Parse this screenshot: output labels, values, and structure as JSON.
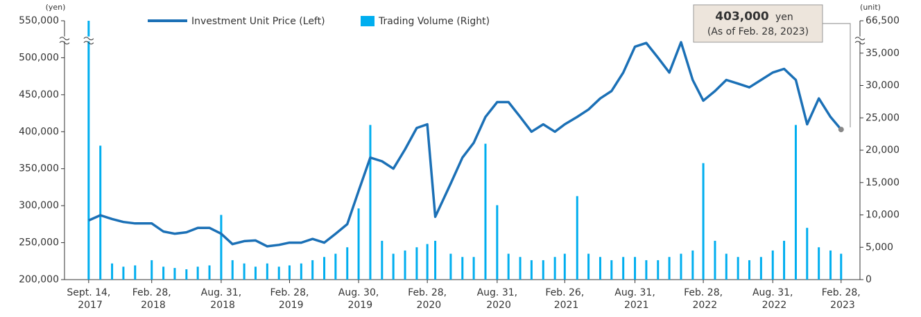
{
  "chart_data": {
    "type": "line_bar",
    "y_unit": "(yen)",
    "y2_unit": "(unit)",
    "x": [
      "2017-09-14",
      "2017-10-15",
      "2017-11-15",
      "2017-12-15",
      "2018-01-15",
      "2018-02-28",
      "2018-03-31",
      "2018-04-30",
      "2018-05-31",
      "2018-06-30",
      "2018-07-31",
      "2018-08-31",
      "2018-09-30",
      "2018-10-31",
      "2018-11-30",
      "2018-12-31",
      "2019-01-31",
      "2019-02-28",
      "2019-03-31",
      "2019-04-30",
      "2019-05-31",
      "2019-06-30",
      "2019-07-31",
      "2019-08-30",
      "2019-09-30",
      "2019-10-31",
      "2019-11-30",
      "2019-12-31",
      "2020-01-31",
      "2020-02-28",
      "2020-03-20",
      "2020-04-30",
      "2020-05-31",
      "2020-06-30",
      "2020-07-31",
      "2020-08-31",
      "2020-09-30",
      "2020-10-31",
      "2020-11-30",
      "2020-12-31",
      "2021-01-31",
      "2021-02-26",
      "2021-03-31",
      "2021-04-30",
      "2021-05-31",
      "2021-06-30",
      "2021-07-31",
      "2021-08-31",
      "2021-09-30",
      "2021-10-31",
      "2021-11-30",
      "2021-12-31",
      "2022-01-31",
      "2022-02-28",
      "2022-03-31",
      "2022-04-30",
      "2022-05-31",
      "2022-06-30",
      "2022-07-31",
      "2022-08-31",
      "2022-09-30",
      "2022-10-31",
      "2022-11-30",
      "2022-12-31",
      "2023-01-31",
      "2023-02-28"
    ],
    "xlim": [
      "2017-07-12",
      "2023-04-19"
    ],
    "xticks": [
      {
        "value": "2017-09-14",
        "label": "Sept. 14, 2017"
      },
      {
        "value": "2018-02-28",
        "label": "Feb. 28, 2018"
      },
      {
        "value": "2018-08-31",
        "label": "Aug. 31, 2018"
      },
      {
        "value": "2019-02-28",
        "label": "Feb. 28, 2019"
      },
      {
        "value": "2019-08-30",
        "label": "Aug. 30, 2019"
      },
      {
        "value": "2020-02-28",
        "label": "Feb. 28, 2020"
      },
      {
        "value": "2020-08-31",
        "label": "Aug. 31, 2020"
      },
      {
        "value": "2021-02-26",
        "label": "Feb. 26, 2021"
      },
      {
        "value": "2021-08-31",
        "label": "Aug. 31, 2021"
      },
      {
        "value": "2022-02-28",
        "label": "Feb. 28, 2022"
      },
      {
        "value": "2022-08-31",
        "label": "Aug. 31, 2022"
      },
      {
        "value": "2023-02-28",
        "label": "Feb. 28, 2023"
      }
    ],
    "ylim": [
      200000,
      550000
    ],
    "yticks": [
      {
        "value": 200000,
        "label": "200,000"
      },
      {
        "value": 250000,
        "label": "250,000"
      },
      {
        "value": 300000,
        "label": "300,000"
      },
      {
        "value": 350000,
        "label": "350,000"
      },
      {
        "value": 400000,
        "label": "400,000"
      },
      {
        "value": 450000,
        "label": "450,000"
      },
      {
        "value": 500000,
        "label": "500,000"
      },
      {
        "value": 550000,
        "label": "550,000"
      }
    ],
    "y2lim": [
      0,
      66500
    ],
    "y2ticks": [
      0,
      {
        "value": 5000,
        "label": "5,000"
      },
      {
        "value": 10000,
        "label": "10,000"
      },
      {
        "value": 15000,
        "label": "15,000"
      },
      {
        "value": 20000,
        "label": "20,000"
      },
      {
        "value": 25000,
        "label": "25,000"
      },
      {
        "value": 30000,
        "label": "30,000"
      },
      {
        "value": 35000,
        "label": "35,000"
      },
      {
        "value": 66500,
        "label": "66,500"
      }
    ],
    "axis_break": true,
    "series": [
      {
        "name": "Investment Unit Price (Left)",
        "kind": "line",
        "color": "#1b70b6",
        "values": [
          280000,
          287000,
          282000,
          278000,
          276000,
          276000,
          265000,
          262000,
          264000,
          270000,
          270000,
          262000,
          248000,
          252000,
          253000,
          245000,
          247000,
          250000,
          250000,
          255000,
          250000,
          262000,
          275000,
          320000,
          365000,
          360000,
          350000,
          376000,
          405000,
          410000,
          285000,
          330000,
          365000,
          385000,
          420000,
          440000,
          440000,
          420000,
          400000,
          410000,
          400000,
          410000,
          420000,
          430000,
          445000,
          455000,
          480000,
          515000,
          520000,
          500000,
          480000,
          521000,
          470000,
          442000,
          455000,
          470000,
          465000,
          460000,
          470000,
          480000,
          485000,
          470000,
          410000,
          445000,
          420000,
          403000
        ]
      },
      {
        "name": "Trading Volume (Right)",
        "kind": "bar",
        "axis": "y2",
        "color": "#00aeef",
        "values": [
          66500,
          20700,
          2500,
          2000,
          2200,
          3000,
          2000,
          1800,
          1600,
          2000,
          2200,
          10000,
          3000,
          2500,
          2000,
          2500,
          2000,
          2200,
          2500,
          3000,
          3500,
          4000,
          5000,
          11000,
          23900,
          6000,
          4000,
          4500,
          5000,
          5500,
          6000,
          4000,
          3500,
          3500,
          21000,
          11500,
          4000,
          3500,
          3000,
          3000,
          3500,
          4000,
          12900,
          4000,
          3500,
          3000,
          3500,
          3500,
          3000,
          3000,
          3500,
          4000,
          4500,
          18000,
          6000,
          4000,
          3500,
          3000,
          3500,
          4500,
          6000,
          23900,
          8000,
          5000,
          4500,
          4000
        ]
      }
    ],
    "annotation": {
      "value_label": "403,000",
      "unit": "yen",
      "note": "(As of Feb. 28, 2023)"
    }
  }
}
